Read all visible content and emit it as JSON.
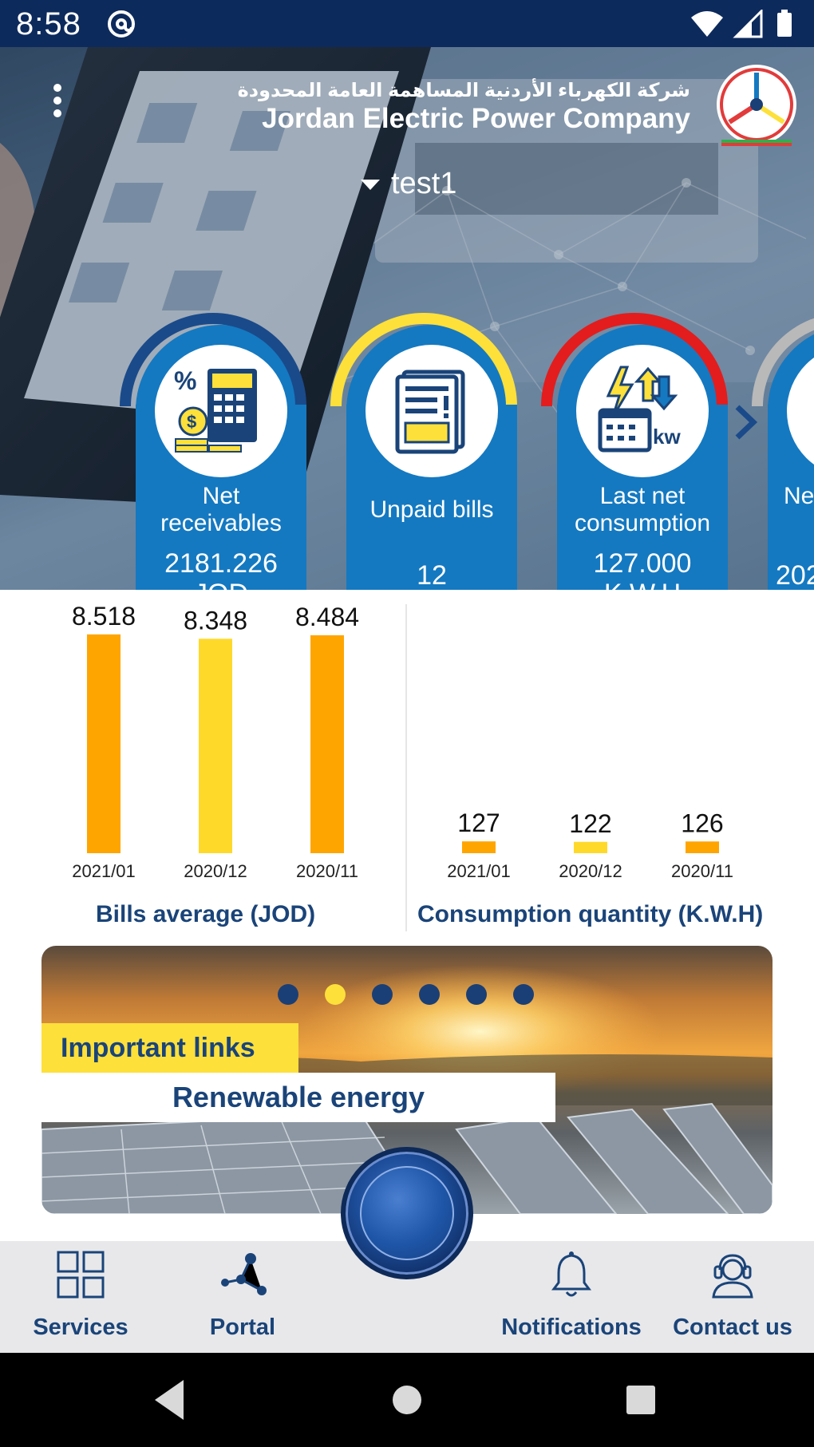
{
  "status_bar": {
    "time": "8:58"
  },
  "header": {
    "brand_arabic": "شركة الكهرباء الأردنية المساهمة العامة المحدودة",
    "brand_english": "Jordan Electric Power Company",
    "account": "test1"
  },
  "cards": [
    {
      "title_line1": "Net",
      "title_line2": "receivables",
      "value_line1": "2181.226",
      "value_line2": "JOD",
      "arch_color": "#1a4a8a",
      "icon": "calculator-coins-icon"
    },
    {
      "title_line1": "Unpaid bills",
      "title_line2": "",
      "value_line1": "12",
      "value_line2": "",
      "arch_color": "#fde03a",
      "icon": "bill-document-icon"
    },
    {
      "title_line1": "Last net",
      "title_line2": "consumption",
      "value_line1": "127.000",
      "value_line2": "K.W.H",
      "arch_color": "#e31d1d",
      "icon": "energy-kw-icon"
    },
    {
      "title_line1": "Ne",
      "title_line2": "",
      "value_line1": "202",
      "value_line2": "",
      "arch_color": "#b9b9b9",
      "icon": "partial-icon"
    }
  ],
  "chart_data": [
    {
      "type": "bar",
      "title": "Bills average (JOD)",
      "categories": [
        "2021/01",
        "2020/12",
        "2020/11"
      ],
      "values": [
        8.518,
        8.348,
        8.484
      ],
      "value_labels": [
        "8.518",
        "8.348",
        "8.484"
      ],
      "colors": [
        "#ffa500",
        "#ffd92a",
        "#ffa500"
      ],
      "ylim": [
        0,
        8.7
      ]
    },
    {
      "type": "bar",
      "title": "Consumption quantity (K.W.H)",
      "categories": [
        "2021/01",
        "2020/12",
        "2020/11"
      ],
      "values": [
        127,
        122,
        126
      ],
      "value_labels": [
        "127",
        "122",
        "126"
      ],
      "colors": [
        "#ffa500",
        "#ffd92a",
        "#ffa500"
      ],
      "ylim": [
        0,
        2400
      ]
    }
  ],
  "banner": {
    "label1": "Important links",
    "label2": "Renewable energy",
    "dot_count": 6,
    "active_dot": 1
  },
  "bottom_nav": {
    "services": "Services",
    "portal": "Portal",
    "notifications": "Notifications",
    "contact": "Contact us"
  }
}
